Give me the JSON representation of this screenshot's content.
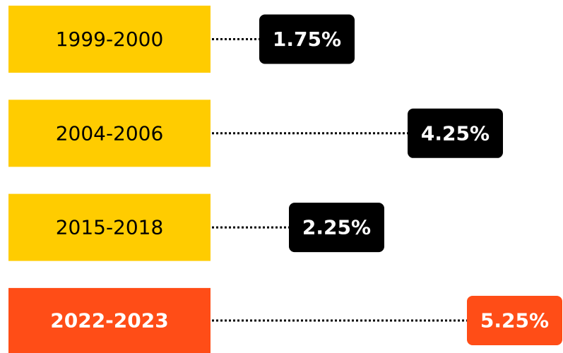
{
  "chart_data": {
    "type": "bar",
    "categories": [
      "1999-2000",
      "2004-2006",
      "2015-2018",
      "2022-2023"
    ],
    "values": [
      1.75,
      4.25,
      2.25,
      5.25
    ],
    "value_labels": [
      "1.75%",
      "4.25%",
      "2.25%",
      "5.25%"
    ],
    "box_colors": [
      "#ffcc00",
      "#ffcc00",
      "#ffcc00",
      "#ff4d17"
    ],
    "badge_colors": [
      "#000000",
      "#000000",
      "#000000",
      "#ff4d17"
    ],
    "highlight_index": 3
  }
}
